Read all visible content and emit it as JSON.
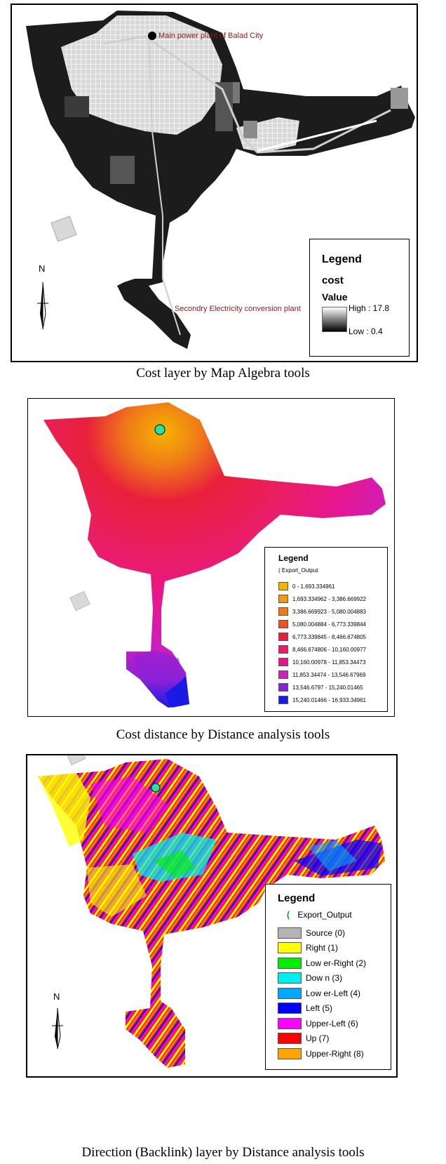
{
  "panel1": {
    "label_main": "Main power plant of Balad City",
    "label_secondary": "Secondry Electricity conversion plant",
    "north": "N",
    "legend": {
      "title": "Legend",
      "layer": "cost",
      "field": "Value",
      "high": "High : 17.8",
      "low": "Low : 0.4"
    },
    "caption": "Cost layer by Map Algebra tools"
  },
  "panel2": {
    "legend": {
      "title": "Legend",
      "layer": "Export_Output",
      "classes": [
        {
          "label": "0 - 1,693.334961",
          "color": "#f5b400"
        },
        {
          "label": "1,693.334962 - 3,386.669922",
          "color": "#f39a10"
        },
        {
          "label": "3,386.669923 - 5,080.004883",
          "color": "#f07a18"
        },
        {
          "label": "5,080.004884 - 6,773.339844",
          "color": "#ec5522"
        },
        {
          "label": "6,773.339845 - 8,466.674805",
          "color": "#e8203a"
        },
        {
          "label": "8,466.674806 - 10,160.00977",
          "color": "#ea1e66"
        },
        {
          "label": "10,160.00978 - 11,853.34473",
          "color": "#e8158f"
        },
        {
          "label": "11,853.34474 - 13,546.67969",
          "color": "#cc1fbc"
        },
        {
          "label": "13,546.6797 - 15,240.01465",
          "color": "#8a22d8"
        },
        {
          "label": "15,240.01466 - 16,933.34961",
          "color": "#1a1ae6"
        }
      ]
    },
    "caption": "Cost distance by Distance analysis tools"
  },
  "panel3": {
    "north": "N",
    "legend": {
      "title": "Legend",
      "layer": "Export_Output",
      "classes": [
        {
          "label": "Source (0)",
          "color": "#b4b4b4"
        },
        {
          "label": "Right (1)",
          "color": "#ffff00"
        },
        {
          "label": "Low er-Right (2)",
          "color": "#00ee00"
        },
        {
          "label": "Dow n (3)",
          "color": "#00eeee"
        },
        {
          "label": "Low er-Left (4)",
          "color": "#00a8ff"
        },
        {
          "label": "Left (5)",
          "color": "#0000ff"
        },
        {
          "label": "Upper-Left (6)",
          "color": "#ff00ff"
        },
        {
          "label": "Up (7)",
          "color": "#ff0000"
        },
        {
          "label": "Upper-Right (8)",
          "color": "#ffa500"
        }
      ]
    },
    "caption": "Direction (Backlink) layer by Distance analysis tools"
  }
}
